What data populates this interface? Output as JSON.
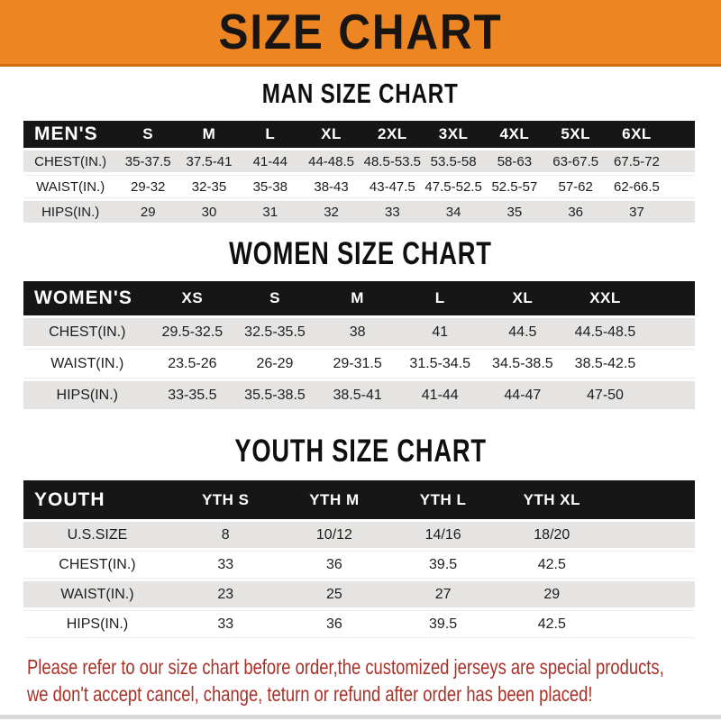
{
  "banner": {
    "title": "SIZE CHART"
  },
  "sections": [
    {
      "id": "men",
      "heading": "MAN SIZE CHART",
      "label": "MEN'S",
      "columns": [
        "S",
        "M",
        "L",
        "XL",
        "2XL",
        "3XL",
        "4XL",
        "5XL",
        "6XL"
      ],
      "rows": [
        {
          "label": "CHEST(IN.)",
          "values": [
            "35-37.5",
            "37.5-41",
            "41-44",
            "44-48.5",
            "48.5-53.5",
            "53.5-58",
            "58-63",
            "63-67.5",
            "67.5-72"
          ]
        },
        {
          "label": "WAIST(IN.)",
          "values": [
            "29-32",
            "32-35",
            "35-38",
            "38-43",
            "43-47.5",
            "47.5-52.5",
            "52.5-57",
            "57-62",
            "62-66.5"
          ]
        },
        {
          "label": "HIPS(IN.)",
          "values": [
            "29",
            "30",
            "31",
            "32",
            "33",
            "34",
            "35",
            "36",
            "37"
          ]
        }
      ]
    },
    {
      "id": "women",
      "heading": "WOMEN SIZE CHART",
      "label": "WOMEN'S",
      "columns": [
        "XS",
        "S",
        "M",
        "L",
        "XL",
        "XXL"
      ],
      "rows": [
        {
          "label": "CHEST(IN.)",
          "values": [
            "29.5-32.5",
            "32.5-35.5",
            "38",
            "41",
            "44.5",
            "44.5-48.5"
          ]
        },
        {
          "label": "WAIST(IN.)",
          "values": [
            "23.5-26",
            "26-29",
            "29-31.5",
            "31.5-34.5",
            "34.5-38.5",
            "38.5-42.5"
          ]
        },
        {
          "label": "HIPS(IN.)",
          "values": [
            "33-35.5",
            "35.5-38.5",
            "38.5-41",
            "41-44",
            "44-47",
            "47-50"
          ]
        }
      ]
    },
    {
      "id": "youth",
      "heading": "YOUTH SIZE CHART",
      "label": "YOUTH",
      "columns": [
        "YTH S",
        "YTH M",
        "YTH L",
        "YTH XL"
      ],
      "rows": [
        {
          "label": "U.S.SIZE",
          "values": [
            "8",
            "10/12",
            "14/16",
            "18/20"
          ]
        },
        {
          "label": "CHEST(IN.)",
          "values": [
            "33",
            "36",
            "39.5",
            "42.5"
          ]
        },
        {
          "label": "WAIST(IN.)",
          "values": [
            "23",
            "25",
            "27",
            "29"
          ]
        },
        {
          "label": "HIPS(IN.)",
          "values": [
            "33",
            "36",
            "39.5",
            "42.5"
          ]
        }
      ]
    }
  ],
  "footer": {
    "line1": "Please refer to our size chart before order,the customized jerseys are special products,",
    "line2": "we don't accept cancel, change, teturn or refund after order has been placed!"
  },
  "colors": {
    "banner_bg": "#ed8522",
    "header_bar_bg": "#161616",
    "row_gray": "#e5e4e2",
    "footer_red": "#a93128"
  }
}
